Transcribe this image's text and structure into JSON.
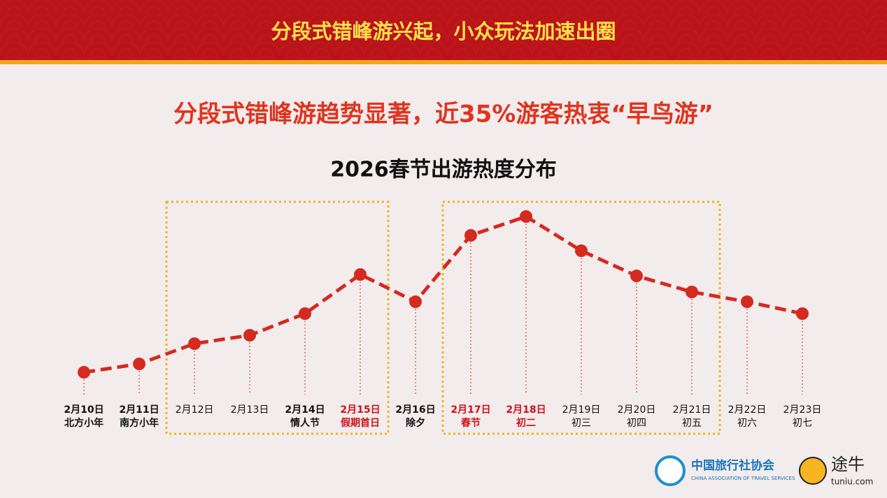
{
  "header": {
    "title": "分段式错峰游兴起，小众玩法加速出圈"
  },
  "headline": "分段式错峰游趋势显著，近35%游客热衷“早鸟游”",
  "logos": {
    "association": "中国旅行社协会",
    "association_en": "CHINA ASSOCIATION OF TRAVEL SERVICES",
    "brand": "途牛",
    "brand_url": "tuniu.com"
  },
  "chart_data": {
    "type": "line",
    "title": "2026春节出游热度分布",
    "categories": [
      "2月10日",
      "2月11日",
      "2月12日",
      "2月13日",
      "2月14日",
      "2月15日",
      "2月16日",
      "2月17日",
      "2月18日",
      "2月19日",
      "2月20日",
      "2月21日",
      "2月22日",
      "2月23日"
    ],
    "sublabels": [
      "北方小年",
      "南方小年",
      null,
      null,
      "情人节",
      "假期首日",
      "除夕",
      "春节",
      "初二",
      "初三",
      "初四",
      "初五",
      "初六",
      "初七"
    ],
    "label_styles": [
      "bold",
      "bold",
      "normal",
      "normal",
      "bold",
      "red",
      "bold",
      "red",
      "red",
      "normal",
      "normal",
      "normal",
      "normal",
      "normal"
    ],
    "values": [
      32,
      44,
      73,
      85,
      116,
      172,
      133,
      228,
      255,
      206,
      170,
      147,
      133,
      116
    ],
    "ylim": [
      0,
      270
    ],
    "color": "#d42a20",
    "highlight_ranges": [
      [
        2,
        5
      ],
      [
        7,
        11
      ]
    ],
    "highlight_color": "#f2b61b"
  }
}
